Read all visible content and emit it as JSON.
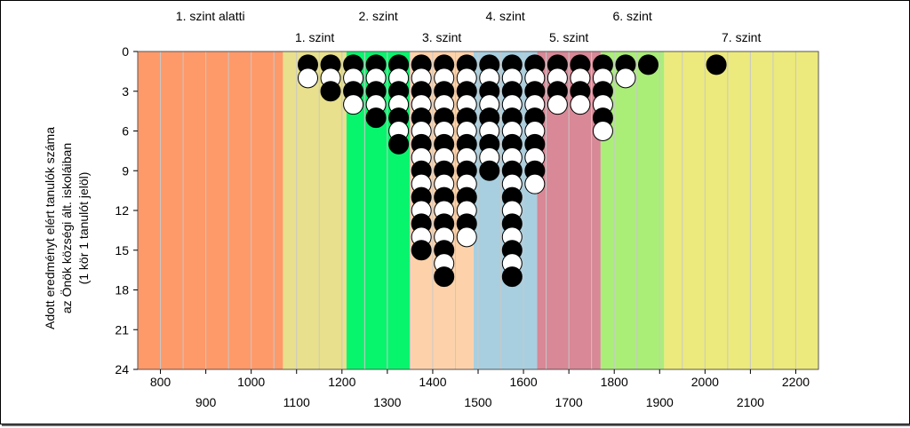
{
  "chart_data": {
    "type": "scatter",
    "description_style": "dot-plot",
    "ylabel_lines": [
      "Adott eredményt elért tanulók száma",
      "az Önök községi ált. iskoláiban",
      "(1 kör 1 tanulót jelöl)"
    ],
    "xlim": [
      750,
      2250
    ],
    "ylim": [
      0,
      24
    ],
    "y_inverted": true,
    "x_ticks_upper": [
      800,
      1000,
      1200,
      1400,
      1600,
      1800,
      2000,
      2200
    ],
    "x_ticks_lower": [
      900,
      1100,
      1300,
      1500,
      1700,
      1900,
      2100
    ],
    "y_ticks": [
      0,
      3,
      6,
      9,
      12,
      15,
      18,
      21,
      24
    ],
    "grid": "vertical",
    "bands": [
      {
        "label": "1. szint alatti",
        "from": 750,
        "to": 1070,
        "color": "#fe9a6a",
        "label_row": "top"
      },
      {
        "label": "1. szint",
        "from": 1070,
        "to": 1210,
        "color": "#e8e08c",
        "label_row": "bottom"
      },
      {
        "label": "2. szint",
        "from": 1210,
        "to": 1350,
        "color": "#07f56c",
        "label_row": "top"
      },
      {
        "label": "3. szint",
        "from": 1350,
        "to": 1490,
        "color": "#fdd2aa",
        "label_row": "bottom"
      },
      {
        "label": "4. szint",
        "from": 1490,
        "to": 1630,
        "color": "#a8cfe0",
        "label_row": "top"
      },
      {
        "label": "5. szint",
        "from": 1630,
        "to": 1770,
        "color": "#d88896",
        "label_row": "bottom"
      },
      {
        "label": "6. szint",
        "from": 1770,
        "to": 1910,
        "color": "#aaee78",
        "label_row": "top"
      },
      {
        "label": "7. szint",
        "from": 1910,
        "to": 2250,
        "color": "#ecea7c",
        "label_row": "bottom"
      }
    ],
    "columns": [
      {
        "x": 1125,
        "pattern": [
          "b",
          "w"
        ]
      },
      {
        "x": 1175,
        "pattern": [
          "b",
          "w",
          "b"
        ]
      },
      {
        "x": 1225,
        "pattern": [
          "b",
          "w",
          "b",
          "w"
        ]
      },
      {
        "x": 1275,
        "pattern": [
          "b",
          "w",
          "b",
          "w",
          "b"
        ]
      },
      {
        "x": 1325,
        "pattern": [
          "b",
          "w",
          "b",
          "w",
          "b",
          "w",
          "b"
        ]
      },
      {
        "x": 1375,
        "pattern": [
          "b",
          "w",
          "b",
          "w",
          "b",
          "w",
          "b",
          "w",
          "b",
          "w",
          "b",
          "w",
          "b",
          "w",
          "b"
        ]
      },
      {
        "x": 1425,
        "pattern": [
          "b",
          "w",
          "b",
          "w",
          "b",
          "w",
          "b",
          "w",
          "b",
          "w",
          "b",
          "w",
          "b",
          "w",
          "b",
          "w",
          "b"
        ]
      },
      {
        "x": 1475,
        "pattern": [
          "b",
          "w",
          "b",
          "w",
          "b",
          "w",
          "b",
          "w",
          "b",
          "w",
          "b",
          "w",
          "b",
          "w"
        ]
      },
      {
        "x": 1525,
        "pattern": [
          "b",
          "w",
          "b",
          "w",
          "b",
          "w",
          "b",
          "w",
          "b"
        ]
      },
      {
        "x": 1575,
        "pattern": [
          "b",
          "w",
          "b",
          "w",
          "b",
          "w",
          "b",
          "w",
          "b",
          "w",
          "b",
          "w",
          "b",
          "w",
          "b",
          "w",
          "b"
        ]
      },
      {
        "x": 1625,
        "pattern": [
          "b",
          "w",
          "b",
          "w",
          "b",
          "w",
          "b",
          "w",
          "b",
          "w"
        ]
      },
      {
        "x": 1675,
        "pattern": [
          "b",
          "w",
          "b",
          "w"
        ]
      },
      {
        "x": 1725,
        "pattern": [
          "b",
          "w",
          "b",
          "w"
        ]
      },
      {
        "x": 1775,
        "pattern": [
          "b",
          "w",
          "b",
          "w",
          "b",
          "w"
        ]
      },
      {
        "x": 1825,
        "pattern": [
          "b",
          "w"
        ]
      },
      {
        "x": 1875,
        "pattern": [
          "b"
        ]
      },
      {
        "x": 2025,
        "pattern": [
          "b"
        ]
      }
    ]
  }
}
